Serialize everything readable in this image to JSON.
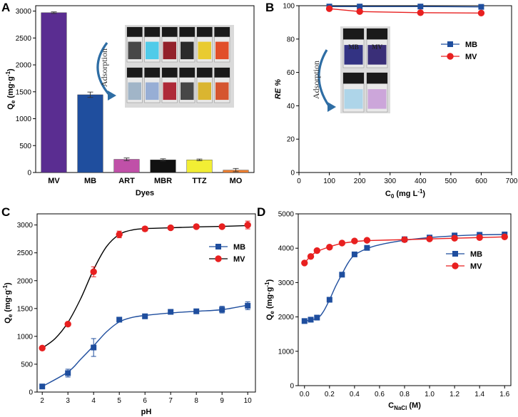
{
  "chart_data": [
    {
      "id": "A",
      "type": "bar",
      "panel_label": "A",
      "xlabel": "Dyes",
      "ylabel": "Qe (mg·g⁻¹)",
      "ylim": [
        0,
        3100
      ],
      "yticks": [
        0,
        500,
        1000,
        1500,
        2000,
        2500,
        3000
      ],
      "categories": [
        "MV",
        "MB",
        "ART",
        "MBR",
        "TTZ",
        "MO"
      ],
      "values": [
        2970,
        1445,
        245,
        235,
        235,
        45
      ],
      "errors": [
        15,
        50,
        25,
        20,
        15,
        30
      ],
      "colors": [
        "#5a2d91",
        "#1f4e9e",
        "#c050a8",
        "#111111",
        "#f2ee34",
        "#f08030"
      ],
      "inset": {
        "label": "Adsorption"
      }
    },
    {
      "id": "B",
      "type": "line",
      "panel_label": "B",
      "xlabel": "C0 (mg L⁻¹)",
      "ylabel": "RE %",
      "xlim": [
        0,
        700
      ],
      "ylim": [
        0,
        100
      ],
      "xticks": [
        0,
        100,
        200,
        300,
        400,
        500,
        600,
        700
      ],
      "yticks": [
        0,
        20,
        40,
        60,
        80,
        100
      ],
      "series": [
        {
          "name": "MB",
          "color": "#1f4e9e",
          "marker": "square",
          "x": [
            100,
            200,
            400,
            600
          ],
          "y": [
            99.5,
            99.5,
            99.5,
            99.3
          ]
        },
        {
          "name": "MV",
          "color": "#e82020",
          "marker": "circle",
          "x": [
            100,
            200,
            400,
            600
          ],
          "y": [
            98.2,
            96.5,
            95.8,
            95.6
          ]
        }
      ],
      "legend_position": "upper-right",
      "inset": {
        "label": "Adsorption",
        "vial_labels": [
          "MB",
          "MV"
        ]
      }
    },
    {
      "id": "C",
      "type": "line",
      "panel_label": "C",
      "xlabel": "pH",
      "ylabel": "Qe (mg·g⁻¹)",
      "xlim": [
        1.8,
        10.3
      ],
      "ylim": [
        0,
        3200
      ],
      "xticks": [
        2,
        3,
        4,
        5,
        6,
        7,
        8,
        9,
        10
      ],
      "yticks": [
        0,
        500,
        1000,
        1500,
        2000,
        2500,
        3000
      ],
      "series": [
        {
          "name": "MB",
          "color": "#1f4e9e",
          "marker": "square",
          "x": [
            2,
            3,
            4,
            5,
            6,
            7,
            8,
            9,
            10
          ],
          "y": [
            100,
            340,
            800,
            1300,
            1360,
            1440,
            1450,
            1480,
            1550
          ],
          "err": [
            15,
            70,
            160,
            30,
            30,
            30,
            40,
            60,
            70
          ],
          "fit": [
            [
              2,
              100
            ],
            [
              3,
              360
            ],
            [
              3.5,
              590
            ],
            [
              4,
              830
            ],
            [
              4.5,
              1080
            ],
            [
              5,
              1260
            ],
            [
              5.5,
              1340
            ],
            [
              6,
              1375
            ],
            [
              7,
              1420
            ],
            [
              8,
              1450
            ],
            [
              9,
              1480
            ],
            [
              10,
              1560
            ]
          ]
        },
        {
          "name": "MV",
          "color": "#e82020",
          "marker": "circle",
          "x": [
            2,
            3,
            4,
            5,
            6,
            7,
            8,
            9,
            10
          ],
          "y": [
            790,
            1220,
            2160,
            2830,
            2930,
            2950,
            2970,
            2970,
            3000
          ],
          "err": [
            20,
            30,
            90,
            60,
            40,
            25,
            20,
            30,
            70
          ],
          "fit": [
            [
              2,
              790
            ],
            [
              2.5,
              960
            ],
            [
              3,
              1250
            ],
            [
              3.5,
              1680
            ],
            [
              4,
              2200
            ],
            [
              4.5,
              2610
            ],
            [
              5,
              2830
            ],
            [
              5.5,
              2910
            ],
            [
              6,
              2935
            ],
            [
              7,
              2950
            ],
            [
              8,
              2965
            ],
            [
              9,
              2975
            ],
            [
              10,
              2990
            ]
          ]
        }
      ],
      "legend_position": "center-right"
    },
    {
      "id": "D",
      "type": "line",
      "panel_label": "D",
      "xlabel": "CNaCl (M)",
      "ylabel": "Qe (mg·g⁻¹)",
      "xlim": [
        -0.05,
        1.65
      ],
      "ylim": [
        0,
        5000
      ],
      "xticks": [
        0.0,
        0.2,
        0.4,
        0.6,
        0.8,
        1.0,
        1.2,
        1.4,
        1.6
      ],
      "yticks": [
        0,
        1000,
        2000,
        3000,
        4000,
        5000
      ],
      "series": [
        {
          "name": "MB",
          "color": "#1f4e9e",
          "marker": "square",
          "x": [
            0,
            0.05,
            0.1,
            0.2,
            0.3,
            0.4,
            0.5,
            0.8,
            1.0,
            1.2,
            1.4,
            1.6
          ],
          "y": [
            1880,
            1920,
            1980,
            2500,
            3230,
            3820,
            4010,
            4260,
            4310,
            4370,
            4390,
            4400
          ],
          "fit": [
            [
              0,
              1880
            ],
            [
              0.1,
              1960
            ],
            [
              0.15,
              2150
            ],
            [
              0.2,
              2500
            ],
            [
              0.25,
              2900
            ],
            [
              0.3,
              3250
            ],
            [
              0.35,
              3580
            ],
            [
              0.4,
              3800
            ],
            [
              0.5,
              3990
            ],
            [
              0.6,
              4100
            ],
            [
              0.8,
              4230
            ],
            [
              1.0,
              4310
            ],
            [
              1.2,
              4360
            ],
            [
              1.4,
              4390
            ],
            [
              1.6,
              4400
            ]
          ]
        },
        {
          "name": "MV",
          "color": "#e82020",
          "marker": "circle",
          "x": [
            0,
            0.05,
            0.1,
            0.2,
            0.3,
            0.4,
            0.5,
            0.8,
            1.0,
            1.2,
            1.4,
            1.6
          ],
          "y": [
            3570,
            3760,
            3930,
            4030,
            4150,
            4210,
            4230,
            4250,
            4270,
            4290,
            4310,
            4330
          ],
          "fit": [
            [
              0,
              3570
            ],
            [
              0.05,
              3770
            ],
            [
              0.1,
              3900
            ],
            [
              0.2,
              4040
            ],
            [
              0.3,
              4140
            ],
            [
              0.4,
              4190
            ],
            [
              0.5,
              4220
            ],
            [
              0.8,
              4250
            ],
            [
              1.0,
              4270
            ],
            [
              1.2,
              4290
            ],
            [
              1.4,
              4310
            ],
            [
              1.6,
              4330
            ]
          ]
        }
      ],
      "legend_position": "upper-right"
    }
  ]
}
